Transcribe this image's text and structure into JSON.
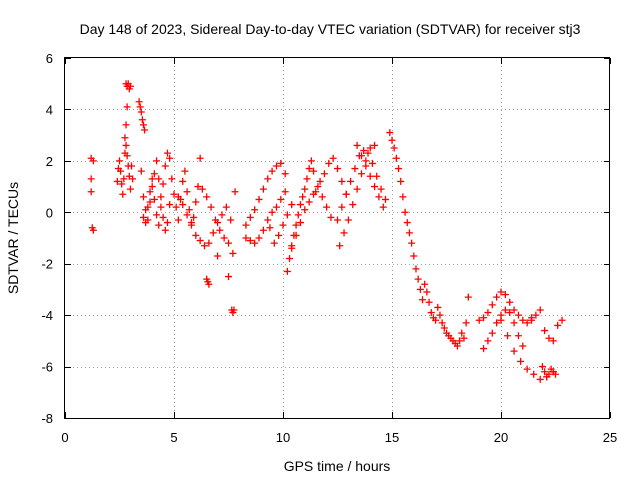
{
  "chart_data": {
    "type": "scatter",
    "title": "Day 148 of 2023, Sidereal Day-to-day VTEC variation (SDTVAR) for receiver stj3",
    "xlabel": "GPS time / hours",
    "ylabel": "SDTVAR / TECUs",
    "xlim": [
      0,
      25
    ],
    "ylim": [
      -8,
      6
    ],
    "xticks": [
      "0",
      "5",
      "10",
      "15",
      "20",
      "25"
    ],
    "yticks": [
      "-8",
      "-6",
      "-4",
      "-2",
      "0",
      "2",
      "4",
      "6"
    ],
    "grid": true,
    "marker": "plus",
    "color": "#ff0000",
    "series": [
      {
        "name": "SDTVAR",
        "x": [
          1.2,
          1.2,
          1.2,
          1.25,
          1.3,
          1.3,
          2.4,
          2.45,
          2.5,
          2.55,
          2.6,
          2.65,
          2.7,
          2.75,
          2.8,
          2.85,
          2.9,
          2.95,
          3.0,
          3.05,
          3.1,
          2.8,
          2.85,
          2.9,
          2.95,
          3.0,
          2.85,
          2.8,
          2.75,
          3.4,
          3.45,
          3.5,
          3.55,
          3.6,
          3.65,
          3.5,
          3.6,
          3.7,
          3.8,
          3.9,
          4.0,
          4.1,
          4.2,
          4.3,
          4.4,
          4.5,
          4.6,
          4.7,
          4.8,
          3.6,
          3.7,
          3.8,
          3.9,
          4.0,
          4.1,
          4.2,
          4.3,
          4.4,
          4.5,
          4.6,
          4.7,
          4.8,
          4.9,
          5.0,
          5.1,
          5.2,
          5.3,
          5.4,
          5.5,
          5.6,
          5.7,
          5.8,
          5.9,
          6.0,
          6.1,
          6.2,
          5.2,
          5.4,
          5.6,
          5.8,
          6.0,
          6.2,
          6.4,
          6.6,
          6.8,
          7.0,
          7.2,
          7.4,
          7.6,
          7.8,
          6.3,
          6.5,
          6.7,
          6.9,
          7.1,
          7.3,
          7.5,
          7.7,
          6.5,
          6.55,
          6.6,
          7.0,
          7.5,
          7.65,
          7.7,
          7.75,
          8.3,
          8.5,
          8.7,
          8.9,
          9.1,
          9.3,
          9.5,
          9.7,
          9.9,
          10.1,
          8.3,
          8.5,
          8.7,
          8.9,
          9.1,
          9.3,
          9.5,
          9.7,
          9.9,
          10.1,
          9.4,
          9.6,
          9.8,
          10.0,
          10.2,
          10.4,
          10.2,
          10.3,
          10.4,
          10.5,
          10.6,
          10.7,
          10.8,
          10.9,
          11.0,
          11.1,
          11.2,
          11.3,
          11.4,
          10.4,
          10.6,
          10.8,
          11.0,
          11.2,
          11.4,
          11.6,
          11.8,
          12.0,
          12.2,
          11.5,
          11.7,
          11.9,
          12.1,
          12.3,
          12.5,
          12.7,
          12.9,
          12.5,
          12.7,
          12.9,
          13.1,
          13.3,
          13.5,
          13.7,
          13.9,
          14.1,
          14.3,
          14.5,
          14.7,
          12.6,
          12.8,
          13.0,
          13.2,
          13.4,
          13.6,
          13.8,
          14.0,
          14.2,
          13.4,
          13.6,
          13.8,
          14.0,
          14.2,
          14.4,
          14.6,
          14.9,
          15.0,
          15.1,
          15.2,
          15.3,
          15.4,
          15.5,
          15.6,
          15.7,
          15.8,
          15.9,
          16.0,
          16.1,
          16.2,
          16.3,
          16.4,
          16.5,
          16.6,
          16.7,
          16.8,
          16.9,
          17.0,
          17.1,
          17.2,
          17.3,
          17.4,
          17.5,
          17.6,
          17.7,
          17.8,
          17.9,
          18.0,
          18.1,
          18.2,
          18.3,
          18.4,
          18.5,
          19.0,
          19.2,
          19.4,
          19.6,
          19.8,
          20.0,
          20.2,
          20.4,
          20.6,
          20.8,
          21.0,
          21.2,
          21.4,
          19.2,
          19.4,
          19.6,
          19.8,
          20.0,
          20.2,
          20.4,
          20.6,
          20.8,
          21.0,
          20.0,
          20.3,
          20.6,
          20.9,
          21.2,
          21.5,
          21.8,
          22.1,
          22.4,
          21.4,
          21.6,
          21.8,
          22.0,
          22.2,
          22.4,
          22.6,
          22.8,
          21.9,
          22.0,
          22.1,
          22.2,
          22.3,
          22.4,
          22.5
        ],
        "y": [
          2.1,
          1.3,
          0.8,
          -0.6,
          -0.7,
          2.0,
          1.2,
          1.7,
          2.0,
          1.6,
          1.1,
          0.7,
          1.3,
          2.3,
          2.6,
          2.2,
          1.8,
          1.4,
          0.9,
          1.8,
          1.3,
          5.0,
          4.9,
          5.0,
          4.8,
          4.9,
          4.1,
          3.4,
          2.9,
          4.3,
          4.1,
          3.9,
          3.6,
          3.4,
          3.2,
          1.6,
          0.6,
          0.1,
          -0.3,
          0.4,
          1.0,
          1.5,
          2.0,
          1.3,
          0.6,
          -0.2,
          -0.7,
          -0.4,
          0.3,
          -0.2,
          -0.4,
          0.2,
          0.8,
          1.3,
          0.5,
          -0.1,
          -0.5,
          0.2,
          1.1,
          1.8,
          2.3,
          2.1,
          1.3,
          0.7,
          0.2,
          -0.3,
          0.5,
          1.2,
          1.6,
          0.8,
          0.1,
          -0.5,
          -0.2,
          0.4,
          1.0,
          2.1,
          0.6,
          0.3,
          -0.1,
          -0.4,
          -0.9,
          -1.1,
          -1.3,
          -1.2,
          -0.8,
          -0.4,
          -0.1,
          0.2,
          -0.3,
          0.8,
          0.9,
          0.6,
          0.2,
          -0.3,
          -0.7,
          -1.0,
          -1.2,
          -1.6,
          -2.6,
          -2.7,
          -2.8,
          -1.7,
          -2.5,
          -3.8,
          -3.9,
          -3.8,
          -0.5,
          -0.2,
          0.1,
          0.5,
          0.9,
          1.3,
          1.6,
          1.8,
          1.9,
          1.5,
          -1.0,
          -1.1,
          -1.2,
          -1.0,
          -0.7,
          -0.3,
          0.0,
          0.2,
          0.5,
          0.8,
          -0.6,
          -1.2,
          -0.9,
          -0.5,
          -0.1,
          0.3,
          -2.3,
          -1.8,
          -1.3,
          -0.9,
          -0.5,
          -0.1,
          0.3,
          0.6,
          0.9,
          1.3,
          1.7,
          2.0,
          1.6,
          -1.4,
          -0.9,
          -0.4,
          0.1,
          0.4,
          0.7,
          1.0,
          0.6,
          0.2,
          -0.2,
          0.8,
          1.2,
          1.5,
          1.9,
          2.1,
          1.7,
          1.2,
          0.7,
          -0.3,
          0.2,
          0.7,
          1.2,
          1.7,
          2.2,
          2.4,
          2.3,
          1.9,
          1.4,
          0.9,
          0.5,
          -1.3,
          -0.8,
          -0.3,
          0.3,
          0.9,
          1.5,
          2.0,
          2.5,
          2.6,
          2.6,
          2.2,
          1.8,
          1.4,
          1.0,
          0.6,
          0.2,
          3.1,
          2.8,
          2.5,
          2.1,
          1.7,
          1.2,
          0.6,
          0.0,
          -0.4,
          -0.8,
          -1.2,
          -1.7,
          -2.2,
          -2.6,
          -3.0,
          -3.4,
          -2.8,
          -3.1,
          -3.5,
          -3.9,
          -4.1,
          -4.2,
          -3.7,
          -4.0,
          -4.3,
          -4.5,
          -4.7,
          -4.8,
          -4.9,
          -5.0,
          -5.1,
          -5.2,
          -5.0,
          -4.7,
          -4.9,
          -4.3,
          -3.3,
          -4.2,
          -4.1,
          -3.9,
          -3.6,
          -3.3,
          -3.1,
          -3.2,
          -3.5,
          -3.8,
          -4.0,
          -4.2,
          -4.3,
          -4.1,
          -5.3,
          -5.0,
          -4.7,
          -4.3,
          -4.0,
          -3.8,
          -3.9,
          -4.3,
          -4.8,
          -5.2,
          -4.2,
          -4.8,
          -5.4,
          -5.8,
          -6.1,
          -6.3,
          -6.5,
          -6.4,
          -6.2,
          -4.2,
          -4.0,
          -3.8,
          -4.6,
          -4.9,
          -5.0,
          -4.4,
          -4.2,
          -6.0,
          -6.2,
          -6.4,
          -6.3,
          -6.1,
          -6.2,
          -6.3
        ]
      }
    ]
  }
}
